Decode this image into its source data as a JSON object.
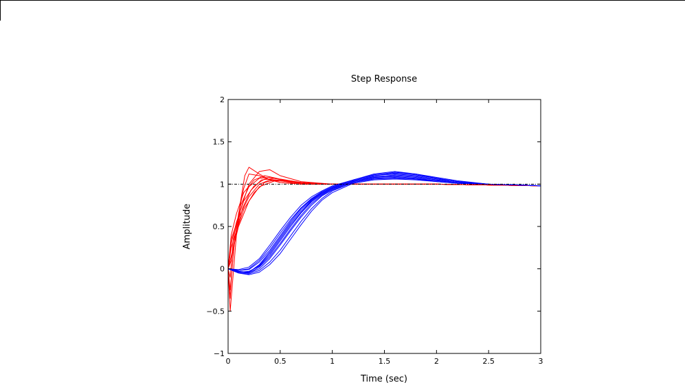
{
  "chart_data": {
    "type": "line",
    "title": "Step Response",
    "xlabel": "Time (sec)",
    "ylabel": "Amplitude",
    "xlim": [
      0,
      3
    ],
    "ylim": [
      -1,
      2
    ],
    "xticks": [
      0,
      0.5,
      1,
      1.5,
      2,
      2.5,
      3
    ],
    "xtick_labels": [
      "0",
      "0.5",
      "1",
      "1.5",
      "2",
      "2.5",
      "3"
    ],
    "yticks": [
      -1,
      -0.5,
      0,
      0.5,
      1,
      1.5,
      2
    ],
    "ytick_labels": [
      "−1",
      "−0.5",
      "0",
      "0.5",
      "1",
      "1.5",
      "2"
    ],
    "grid": false,
    "reference_line": {
      "y": 1,
      "style": "dash-dot",
      "color": "#000000"
    },
    "series_groups": [
      {
        "color": "#ff0000",
        "response": "fast",
        "curves": [
          {
            "x": [
              0,
              0.02,
              0.05,
              0.1,
              0.15,
              0.2,
              0.3,
              0.4,
              0.5,
              0.7,
              1.0,
              1.5,
              2.0,
              3.0
            ],
            "y": [
              0,
              -0.35,
              0.2,
              0.65,
              0.95,
              1.12,
              1.1,
              1.05,
              1.02,
              1.0,
              1.0,
              1.0,
              1.0,
              0.98
            ]
          },
          {
            "x": [
              0,
              0.02,
              0.04,
              0.08,
              0.12,
              0.16,
              0.2,
              0.3,
              0.4,
              0.5,
              0.7,
              1.0,
              1.5,
              2.0,
              3.0
            ],
            "y": [
              0,
              -0.5,
              -0.2,
              0.4,
              0.8,
              1.1,
              1.2,
              1.12,
              1.05,
              1.02,
              1.0,
              1.0,
              1.0,
              1.0,
              0.98
            ]
          },
          {
            "x": [
              0,
              0.03,
              0.08,
              0.15,
              0.25,
              0.35,
              0.45,
              0.6,
              0.8,
              1.0,
              1.5,
              2.0,
              3.0
            ],
            "y": [
              0,
              0.3,
              0.55,
              0.8,
              0.98,
              1.06,
              1.05,
              1.02,
              1.0,
              1.0,
              1.0,
              1.0,
              0.98
            ]
          },
          {
            "x": [
              0,
              0.03,
              0.08,
              0.15,
              0.25,
              0.35,
              0.45,
              0.6,
              0.8,
              1.0,
              1.5,
              2.0,
              3.0
            ],
            "y": [
              0,
              0.25,
              0.45,
              0.7,
              0.9,
              1.02,
              1.05,
              1.03,
              1.01,
              1.0,
              1.0,
              1.0,
              0.98
            ]
          },
          {
            "x": [
              0,
              0.02,
              0.06,
              0.12,
              0.2,
              0.3,
              0.4,
              0.5,
              0.7,
              1.0,
              1.5,
              2.0,
              3.0
            ],
            "y": [
              0,
              -0.25,
              0.3,
              0.7,
              1.0,
              1.15,
              1.17,
              1.1,
              1.03,
              1.0,
              1.0,
              1.0,
              0.98
            ]
          },
          {
            "x": [
              0,
              0.03,
              0.1,
              0.2,
              0.3,
              0.4,
              0.5,
              0.7,
              1.0,
              1.5,
              2.0,
              3.0
            ],
            "y": [
              0,
              0.35,
              0.6,
              0.85,
              1.0,
              1.05,
              1.04,
              1.01,
              1.0,
              1.0,
              1.0,
              0.98
            ]
          },
          {
            "x": [
              0,
              0.02,
              0.05,
              0.12,
              0.2,
              0.3,
              0.4,
              0.55,
              0.8,
              1.0,
              1.5,
              2.0,
              3.0
            ],
            "y": [
              0,
              -0.1,
              0.35,
              0.75,
              0.97,
              1.07,
              1.08,
              1.04,
              1.0,
              1.0,
              1.0,
              1.0,
              0.98
            ]
          },
          {
            "x": [
              0,
              0.04,
              0.1,
              0.2,
              0.3,
              0.45,
              0.6,
              0.8,
              1.0,
              1.5,
              2.0,
              3.0
            ],
            "y": [
              0,
              0.2,
              0.5,
              0.8,
              0.97,
              1.04,
              1.03,
              1.01,
              1.0,
              1.0,
              1.0,
              0.98
            ]
          },
          {
            "x": [
              0,
              0.03,
              0.08,
              0.15,
              0.25,
              0.35,
              0.5,
              0.7,
              1.0,
              1.5,
              2.0,
              3.0
            ],
            "y": [
              0,
              0.4,
              0.65,
              0.9,
              1.05,
              1.1,
              1.06,
              1.02,
              1.0,
              1.0,
              1.0,
              0.98
            ]
          },
          {
            "x": [
              0,
              0.03,
              0.07,
              0.14,
              0.22,
              0.32,
              0.45,
              0.6,
              0.85,
              1.0,
              1.5,
              2.0,
              3.0
            ],
            "y": [
              0,
              0.1,
              0.4,
              0.72,
              0.93,
              1.05,
              1.07,
              1.03,
              1.0,
              1.0,
              1.0,
              1.0,
              0.98
            ]
          }
        ]
      },
      {
        "color": "#0000ff",
        "response": "slow",
        "curves": [
          {
            "x": [
              0,
              0.1,
              0.2,
              0.3,
              0.4,
              0.5,
              0.6,
              0.7,
              0.8,
              0.9,
              1.0,
              1.2,
              1.4,
              1.6,
              1.8,
              2.0,
              2.2,
              2.5,
              2.8,
              3.0
            ],
            "y": [
              0,
              -0.04,
              -0.05,
              0.02,
              0.14,
              0.3,
              0.47,
              0.63,
              0.77,
              0.87,
              0.94,
              1.03,
              1.08,
              1.09,
              1.07,
              1.04,
              1.02,
              1.0,
              0.99,
              0.98
            ]
          },
          {
            "x": [
              0,
              0.1,
              0.2,
              0.3,
              0.4,
              0.5,
              0.6,
              0.7,
              0.8,
              0.9,
              1.0,
              1.2,
              1.4,
              1.6,
              1.8,
              2.0,
              2.2,
              2.5,
              2.8,
              3.0
            ],
            "y": [
              0,
              -0.03,
              -0.04,
              0.05,
              0.2,
              0.37,
              0.54,
              0.69,
              0.81,
              0.9,
              0.96,
              1.04,
              1.1,
              1.12,
              1.1,
              1.06,
              1.03,
              1.0,
              0.99,
              0.98
            ]
          },
          {
            "x": [
              0,
              0.1,
              0.2,
              0.3,
              0.4,
              0.5,
              0.6,
              0.7,
              0.8,
              0.9,
              1.0,
              1.2,
              1.4,
              1.6,
              1.8,
              2.0,
              2.2,
              2.5,
              2.8,
              3.0
            ],
            "y": [
              0,
              -0.05,
              -0.06,
              -0.02,
              0.08,
              0.22,
              0.39,
              0.56,
              0.71,
              0.83,
              0.92,
              1.02,
              1.07,
              1.08,
              1.06,
              1.03,
              1.01,
              1.0,
              0.99,
              0.98
            ]
          },
          {
            "x": [
              0,
              0.1,
              0.2,
              0.3,
              0.4,
              0.5,
              0.6,
              0.7,
              0.8,
              0.9,
              1.0,
              1.2,
              1.4,
              1.6,
              1.8,
              2.0,
              2.2,
              2.5,
              2.8,
              3.0
            ],
            "y": [
              0,
              -0.02,
              0.0,
              0.1,
              0.25,
              0.42,
              0.58,
              0.72,
              0.83,
              0.91,
              0.97,
              1.05,
              1.12,
              1.15,
              1.12,
              1.07,
              1.03,
              1.0,
              0.99,
              0.98
            ]
          },
          {
            "x": [
              0,
              0.1,
              0.2,
              0.3,
              0.4,
              0.5,
              0.6,
              0.7,
              0.8,
              0.9,
              1.0,
              1.2,
              1.4,
              1.6,
              1.8,
              2.0,
              2.2,
              2.5,
              2.8,
              3.0
            ],
            "y": [
              0,
              -0.04,
              -0.03,
              0.03,
              0.16,
              0.33,
              0.5,
              0.66,
              0.79,
              0.88,
              0.95,
              1.03,
              1.09,
              1.1,
              1.08,
              1.05,
              1.02,
              1.0,
              0.99,
              0.98
            ]
          },
          {
            "x": [
              0,
              0.1,
              0.2,
              0.3,
              0.4,
              0.5,
              0.6,
              0.7,
              0.8,
              0.9,
              1.0,
              1.2,
              1.4,
              1.6,
              1.8,
              2.0,
              2.2,
              2.5,
              2.8,
              3.0
            ],
            "y": [
              0,
              -0.05,
              -0.07,
              -0.04,
              0.05,
              0.18,
              0.35,
              0.52,
              0.68,
              0.81,
              0.9,
              1.01,
              1.05,
              1.06,
              1.05,
              1.03,
              1.01,
              1.0,
              0.99,
              0.98
            ]
          },
          {
            "x": [
              0,
              0.1,
              0.2,
              0.3,
              0.4,
              0.5,
              0.6,
              0.7,
              0.8,
              0.9,
              1.0,
              1.2,
              1.4,
              1.6,
              1.8,
              2.0,
              2.2,
              2.5,
              2.8,
              3.0
            ],
            "y": [
              0,
              -0.02,
              -0.01,
              0.08,
              0.22,
              0.39,
              0.56,
              0.71,
              0.82,
              0.9,
              0.96,
              1.04,
              1.1,
              1.13,
              1.11,
              1.07,
              1.03,
              1.0,
              0.99,
              0.98
            ]
          },
          {
            "x": [
              0,
              0.1,
              0.2,
              0.3,
              0.4,
              0.5,
              0.6,
              0.7,
              0.8,
              0.9,
              1.0,
              1.2,
              1.4,
              1.6,
              1.8,
              2.0,
              2.2,
              2.5,
              2.8,
              3.0
            ],
            "y": [
              0,
              -0.03,
              -0.05,
              0.0,
              0.12,
              0.28,
              0.45,
              0.61,
              0.75,
              0.86,
              0.93,
              1.02,
              1.06,
              1.07,
              1.06,
              1.04,
              1.02,
              1.0,
              0.99,
              0.98
            ]
          },
          {
            "x": [
              0,
              0.1,
              0.2,
              0.3,
              0.4,
              0.5,
              0.6,
              0.7,
              0.8,
              0.9,
              1.0,
              1.2,
              1.4,
              1.6,
              1.8,
              2.0,
              2.2,
              2.5,
              2.8,
              3.0
            ],
            "y": [
              0,
              -0.04,
              -0.04,
              0.04,
              0.18,
              0.35,
              0.52,
              0.67,
              0.8,
              0.89,
              0.95,
              1.03,
              1.08,
              1.11,
              1.09,
              1.05,
              1.02,
              1.0,
              0.99,
              0.98
            ]
          },
          {
            "x": [
              0,
              0.1,
              0.2,
              0.3,
              0.4,
              0.5,
              0.6,
              0.7,
              0.8,
              0.9,
              1.0,
              1.2,
              1.4,
              1.6,
              1.8,
              2.0,
              2.2,
              2.5,
              2.8,
              3.0
            ],
            "y": [
              0,
              -0.01,
              0.02,
              0.12,
              0.28,
              0.45,
              0.61,
              0.75,
              0.85,
              0.92,
              0.98,
              1.05,
              1.11,
              1.14,
              1.12,
              1.08,
              1.04,
              1.0,
              0.99,
              0.98
            ]
          }
        ]
      }
    ]
  }
}
